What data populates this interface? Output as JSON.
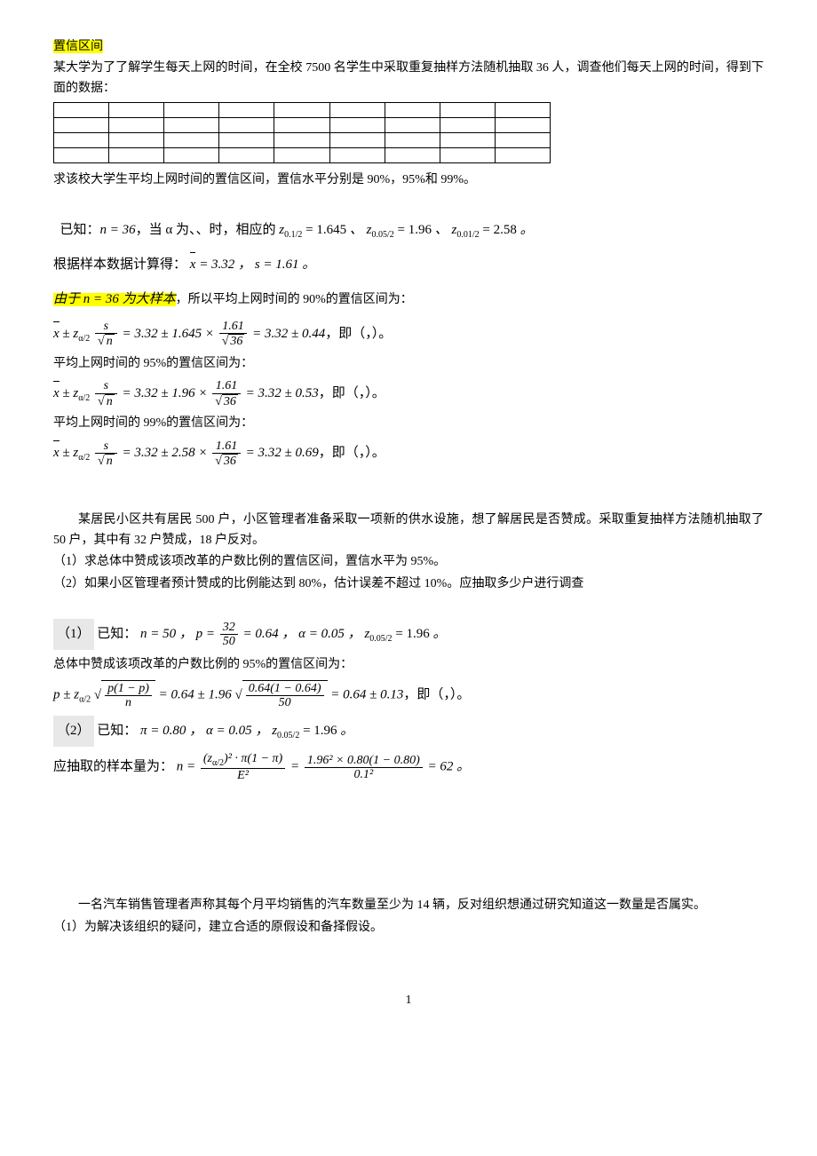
{
  "section1": {
    "title": "置信区间",
    "problem": "某大学为了了解学生每天上网的时间，在全校 7500 名学生中采取重复抽样方法随机抽取 36 人，调查他们每天上网的时间，得到下面的数据：",
    "question": "求该校大学生平均上网时间的置信区间，置信水平分别是 90%，95%和 99%。",
    "table": {
      "rows": 4,
      "cols": 9
    },
    "solution": {
      "known_prefix": "已知：",
      "n_eq": "n = 36",
      "alpha_text": "，当 α 为、、时，相应的",
      "z1": "z",
      "z1_sub": "0.1/2",
      "z1_val": " = 1.645",
      "z2": "z",
      "z2_sub": "0.05/2",
      "z2_val": " = 1.96",
      "z3": "z",
      "z3_sub": "0.01/2",
      "z3_val": " = 2.58",
      "sample_calc": "根据样本数据计算得：",
      "xbar": "x̄ = 3.32",
      "s_val": "s = 1.61",
      "highlight_n": "由于 n = 36 为大样本",
      "ci90_text": "，所以平均上网时间的 90%的置信区间为：",
      "ci90_formula_left": "x̄ ± z",
      "ci90_result": "= 3.32 ± 1.645 ×",
      "ci90_frac_num": "1.61",
      "ci90_frac_den": "36",
      "ci90_final": "= 3.32 ± 0.44",
      "ci90_range": "，即（，）。",
      "ci95_text": "平均上网时间的 95%的置信区间为：",
      "ci95_result": "= 3.32 ± 1.96 ×",
      "ci95_final": "= 3.32 ± 0.53",
      "ci95_range": "，即（，）。",
      "ci99_text": "平均上网时间的 99%的置信区间为：",
      "ci99_result": "= 3.32 ± 2.58 ×",
      "ci99_final": "= 3.32 ± 0.69",
      "ci99_range": "，即（，）。"
    }
  },
  "section2": {
    "problem1": "某居民小区共有居民 500 户，小区管理者准备采取一项新的供水设施，想了解居民是否赞成。采取重复抽样方法随机抽取了 50 户，其中有 32 户赞成，18 户反对。",
    "q1": "（1）求总体中赞成该项改革的户数比例的置信区间，置信水平为 95%。",
    "q2": "（2）如果小区管理者预计赞成的比例能达到 80%，估计误差不超过 10%。应抽取多少户进行调查",
    "ans1_label": "（1）",
    "ans1_known": "已知：",
    "ans1_n": "n = 50",
    "ans1_p_num": "32",
    "ans1_p_den": "50",
    "ans1_p_val": "= 0.64",
    "ans1_alpha": "α = 0.05",
    "ans1_z": "z",
    "ans1_z_sub": "0.05/2",
    "ans1_z_val": " = 1.96",
    "ans1_ci_text": "总体中赞成该项改革的户数比例的 95%的置信区间为：",
    "ans1_formula_num": "p(1 − p)",
    "ans1_formula_den": "n",
    "ans1_calc": "= 0.64 ± 1.96",
    "ans1_calc_num": "0.64(1 − 0.64)",
    "ans1_calc_den": "50",
    "ans1_final": "= 0.64 ± 0.13",
    "ans1_range": "，即（，）。",
    "ans2_label": "（2）",
    "ans2_known": "已知：",
    "ans2_pi": "π = 0.80",
    "ans2_alpha": "α = 0.05",
    "ans2_z": "z",
    "ans2_z_sub": "0.05/2",
    "ans2_z_val": " = 1.96",
    "ans2_text": "应抽取的样本量为：",
    "ans2_formula_num": "(z",
    "ans2_formula_num_sub": "α/2",
    "ans2_formula_num2": ")² · π(1 − π)",
    "ans2_formula_den": "E²",
    "ans2_calc_num": "1.96² × 0.80(1 − 0.80)",
    "ans2_calc_den": "0.1²",
    "ans2_final": "= 62"
  },
  "section3": {
    "problem": "一名汽车销售管理者声称其每个月平均销售的汽车数量至少为 14 辆，反对组织想通过研究知道这一数量是否属实。",
    "q1": "（1）为解决该组织的疑问，建立合适的原假设和备择假设。"
  },
  "page_number": "1"
}
